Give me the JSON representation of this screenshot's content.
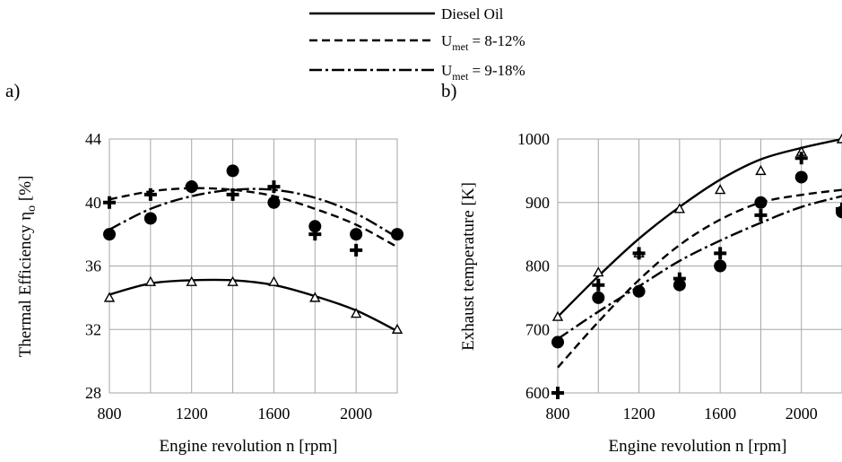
{
  "legend": {
    "items": [
      {
        "label": "Diesel Oil",
        "style": "solid"
      },
      {
        "label_main": "U",
        "label_sub": "met",
        "label_rest": " = 8-12%",
        "style": "dashed"
      },
      {
        "label_main": "U",
        "label_sub": "met",
        "label_rest": " = 9-18%",
        "style": "dashdot"
      }
    ]
  },
  "chart_data": [
    {
      "type": "scatter",
      "panel_label": "a)",
      "xlabel": "Engine revolution  n  [rpm]",
      "ylabel": "Thermal Efficiency  η",
      "ylabel_sub": "o",
      "ylabel_unit": "[%]",
      "xlim": [
        800,
        2200
      ],
      "ylim": [
        28,
        44
      ],
      "xticks": [
        800,
        1200,
        1600,
        2000
      ],
      "yticks": [
        28,
        32,
        36,
        40,
        44
      ],
      "x_grid": [
        800,
        1000,
        1200,
        1400,
        1600,
        1800,
        2000,
        2200
      ],
      "grid": true,
      "series": [
        {
          "name": "Diesel Oil",
          "marker": "triangle",
          "line": "solid",
          "x": [
            800,
            1000,
            1200,
            1400,
            1600,
            1800,
            2000,
            2200
          ],
          "y": [
            34,
            35,
            35,
            35,
            35,
            34,
            33,
            32
          ],
          "fit": [
            34.2,
            34.9,
            35.1,
            35.1,
            34.8,
            34.1,
            33.2,
            31.9
          ]
        },
        {
          "name": "U met = 8-12%",
          "marker": "plus",
          "line": "dashed",
          "x": [
            800,
            1000,
            1200,
            1400,
            1600,
            1800,
            2000
          ],
          "y": [
            40,
            40.5,
            41,
            40.5,
            41,
            38,
            37
          ],
          "fit": [
            40.2,
            40.7,
            40.9,
            40.8,
            40.4,
            39.6,
            38.6,
            37.2
          ]
        },
        {
          "name": "U met = 9-18%",
          "marker": "circle",
          "line": "dashdot",
          "x": [
            800,
            1000,
            1200,
            1400,
            1600,
            1800,
            2000,
            2200
          ],
          "y": [
            38,
            39,
            41,
            42,
            40,
            38.5,
            38,
            38
          ],
          "fit": [
            38.3,
            39.6,
            40.4,
            40.8,
            40.8,
            40.3,
            39.3,
            37.8
          ]
        }
      ]
    },
    {
      "type": "scatter",
      "panel_label": "b)",
      "xlabel": "Engine revolution  n  [rpm]",
      "ylabel": "Exhaust temperature",
      "ylabel_unit": "[K]",
      "xlim": [
        800,
        2200
      ],
      "ylim": [
        600,
        1000
      ],
      "xticks": [
        800,
        1200,
        1600,
        2000
      ],
      "yticks": [
        600,
        700,
        800,
        900,
        1000
      ],
      "x_grid": [
        800,
        1000,
        1200,
        1400,
        1600,
        1800,
        2000,
        2200
      ],
      "grid": true,
      "series": [
        {
          "name": "Diesel Oil",
          "marker": "triangle",
          "line": "solid",
          "x": [
            800,
            1000,
            1200,
            1400,
            1600,
            1800,
            2000,
            2200
          ],
          "y": [
            720,
            790,
            820,
            890,
            920,
            950,
            980,
            1000
          ],
          "fit": [
            720,
            784,
            843,
            893,
            936,
            968,
            986,
            1000
          ]
        },
        {
          "name": "U met = 8-12%",
          "marker": "plus",
          "line": "dashed",
          "x": [
            800,
            1000,
            1200,
            1400,
            1600,
            1800,
            2000,
            2200
          ],
          "y": [
            600,
            770,
            820,
            780,
            820,
            880,
            970,
            890
          ],
          "fit": [
            640,
            712,
            778,
            833,
            873,
            900,
            912,
            920
          ]
        },
        {
          "name": "U met = 9-18%",
          "marker": "circle",
          "line": "dashdot",
          "x": [
            800,
            1000,
            1200,
            1400,
            1600,
            1800,
            2000,
            2200
          ],
          "y": [
            680,
            750,
            760,
            770,
            800,
            900,
            940,
            885
          ],
          "fit": [
            685,
            728,
            768,
            808,
            840,
            868,
            893,
            910
          ]
        }
      ]
    }
  ]
}
